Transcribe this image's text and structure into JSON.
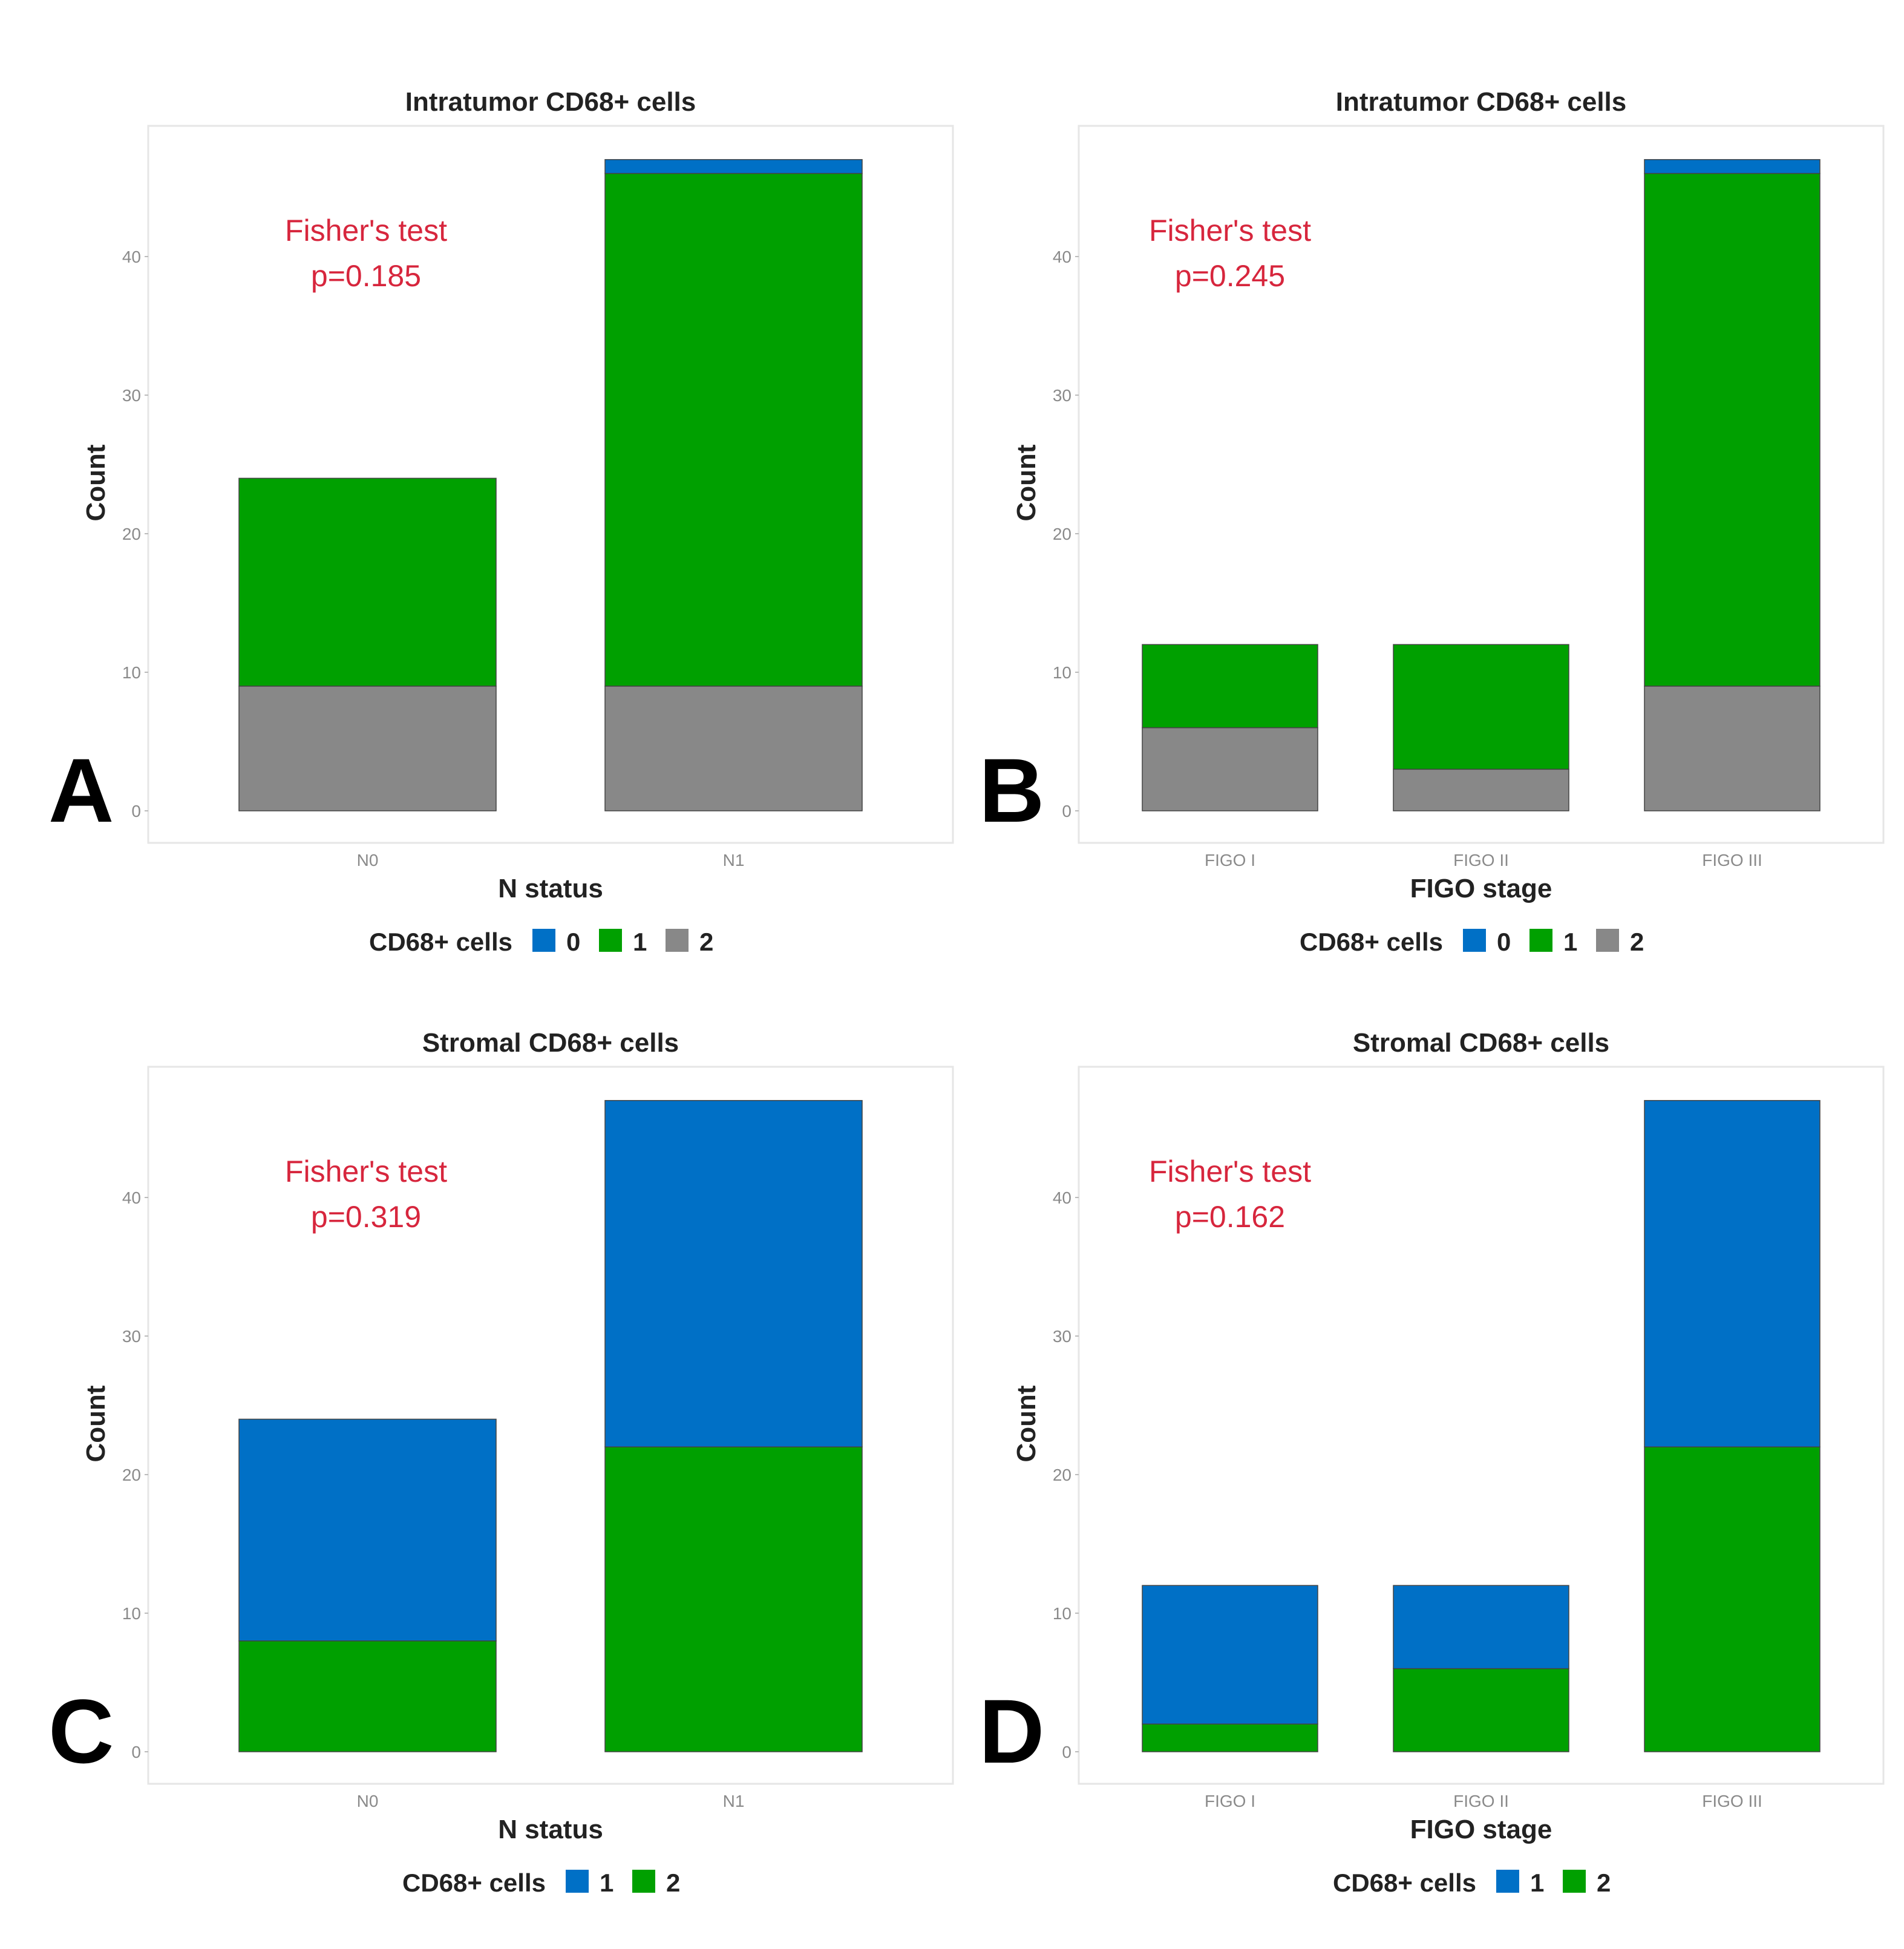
{
  "figure": {
    "panels_layout": "2x2 grid"
  },
  "colors": {
    "blue": "#0070C6",
    "green": "#00A000",
    "gray": "#888888",
    "annotation_red": "#D7263D",
    "text": "#222222",
    "tick_text": "#8a8a8a",
    "panel_border": "#e6e6e6"
  },
  "chart_data": [
    {
      "panel_letter": "A",
      "type": "bar",
      "stacked": true,
      "title": "Intratumor CD68+ cells",
      "xlabel": "N status",
      "ylabel": "Count",
      "ylim": [
        0,
        48
      ],
      "yticks": [
        "0",
        "10",
        "20",
        "30",
        "40"
      ],
      "categories": [
        "N0",
        "N1"
      ],
      "series": [
        {
          "name": "2",
          "color": "#888888",
          "values": [
            9,
            9
          ]
        },
        {
          "name": "1",
          "color": "#00A000",
          "values": [
            15,
            37
          ]
        },
        {
          "name": "0",
          "color": "#0070C6",
          "values": [
            0,
            1
          ]
        }
      ],
      "annotation": {
        "line1": "Fisher's test",
        "line2": "p=0.185"
      },
      "legend": {
        "title": "CD68+ cells",
        "position": "bottom",
        "items": [
          {
            "label": "0",
            "color": "#0070C6"
          },
          {
            "label": "1",
            "color": "#00A000"
          },
          {
            "label": "2",
            "color": "#888888"
          }
        ]
      }
    },
    {
      "panel_letter": "B",
      "type": "bar",
      "stacked": true,
      "title": "Intratumor CD68+ cells",
      "xlabel": "FIGO stage",
      "ylabel": "Count",
      "ylim": [
        0,
        48
      ],
      "yticks": [
        "0",
        "10",
        "20",
        "30",
        "40"
      ],
      "categories": [
        "FIGO I",
        "FIGO II",
        "FIGO III"
      ],
      "series": [
        {
          "name": "2",
          "color": "#888888",
          "values": [
            6,
            3,
            9
          ]
        },
        {
          "name": "1",
          "color": "#00A000",
          "values": [
            6,
            9,
            37
          ]
        },
        {
          "name": "0",
          "color": "#0070C6",
          "values": [
            0,
            0,
            1
          ]
        }
      ],
      "annotation": {
        "line1": "Fisher's test",
        "line2": "p=0.245"
      },
      "legend": {
        "title": "CD68+ cells",
        "position": "bottom",
        "items": [
          {
            "label": "0",
            "color": "#0070C6"
          },
          {
            "label": "1",
            "color": "#00A000"
          },
          {
            "label": "2",
            "color": "#888888"
          }
        ]
      }
    },
    {
      "panel_letter": "C",
      "type": "bar",
      "stacked": true,
      "title": "Stromal CD68+ cells",
      "xlabel": "N status",
      "ylabel": "Count",
      "ylim": [
        0,
        48
      ],
      "yticks": [
        "0",
        "10",
        "20",
        "30",
        "40"
      ],
      "categories": [
        "N0",
        "N1"
      ],
      "series": [
        {
          "name": "2",
          "color": "#00A000",
          "values": [
            8,
            22
          ]
        },
        {
          "name": "1",
          "color": "#0070C6",
          "values": [
            16,
            25
          ]
        }
      ],
      "annotation": {
        "line1": "Fisher's test",
        "line2": "p=0.319"
      },
      "legend": {
        "title": "CD68+ cells",
        "position": "bottom",
        "items": [
          {
            "label": "1",
            "color": "#0070C6"
          },
          {
            "label": "2",
            "color": "#00A000"
          }
        ]
      }
    },
    {
      "panel_letter": "D",
      "type": "bar",
      "stacked": true,
      "title": "Stromal CD68+ cells",
      "xlabel": "FIGO stage",
      "ylabel": "Count",
      "ylim": [
        0,
        48
      ],
      "yticks": [
        "0",
        "10",
        "20",
        "30",
        "40"
      ],
      "categories": [
        "FIGO I",
        "FIGO II",
        "FIGO III"
      ],
      "series": [
        {
          "name": "2",
          "color": "#00A000",
          "values": [
            2,
            6,
            22
          ]
        },
        {
          "name": "1",
          "color": "#0070C6",
          "values": [
            10,
            6,
            25
          ]
        }
      ],
      "annotation": {
        "line1": "Fisher's test",
        "line2": "p=0.162"
      },
      "legend": {
        "title": "CD68+ cells",
        "position": "bottom",
        "items": [
          {
            "label": "1",
            "color": "#0070C6"
          },
          {
            "label": "2",
            "color": "#00A000"
          }
        ]
      }
    }
  ]
}
